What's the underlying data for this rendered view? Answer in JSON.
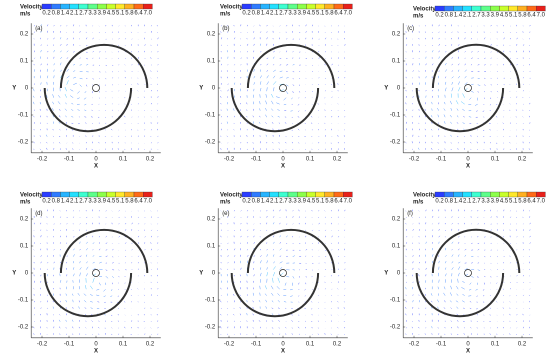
{
  "colorbar": {
    "title": "Velocity",
    "unit": "m/s",
    "ticks": [
      0.2,
      0.8,
      1.4,
      2.1,
      2.7,
      3.3,
      3.9,
      4.5,
      5.1,
      5.8,
      6.4,
      {
        "value": 7,
        "label": "7.0"
      }
    ],
    "colors": [
      "#2a3cff",
      "#2f7bff",
      "#27b4ff",
      "#23e0ff",
      "#3dffd0",
      "#5dff8a",
      "#8cff4a",
      "#c8ff2a",
      "#ffe82a",
      "#ffb020",
      "#ff6a18",
      "#e8201a"
    ]
  },
  "axes": {
    "xlabel": "X",
    "ylabel": "Y",
    "xlim": [
      -0.24,
      0.24
    ],
    "ylim": [
      -0.24,
      0.24
    ],
    "xticks": [
      -0.2,
      -0.1,
      0,
      0.1,
      0.2
    ],
    "yticks": [
      -0.2,
      -0.1,
      0,
      0.1,
      0.2
    ]
  },
  "chart_data": [
    {
      "type": "vector",
      "label": "(a)",
      "vortex_center": [
        -0.08,
        0.0
      ]
    },
    {
      "type": "vector",
      "label": "(b)",
      "vortex_center": [
        -0.01,
        -0.02
      ]
    },
    {
      "type": "vector",
      "label": "(c)",
      "vortex_center": [
        0.0,
        -0.03
      ]
    },
    {
      "type": "vector",
      "label": "(d)",
      "vortex_center": [
        0.0,
        -0.04
      ]
    },
    {
      "type": "vector",
      "label": "(e)",
      "vortex_center": [
        0.0,
        -0.03
      ]
    },
    {
      "type": "vector",
      "label": "(f)",
      "vortex_center": [
        -0.01,
        -0.03
      ]
    }
  ]
}
